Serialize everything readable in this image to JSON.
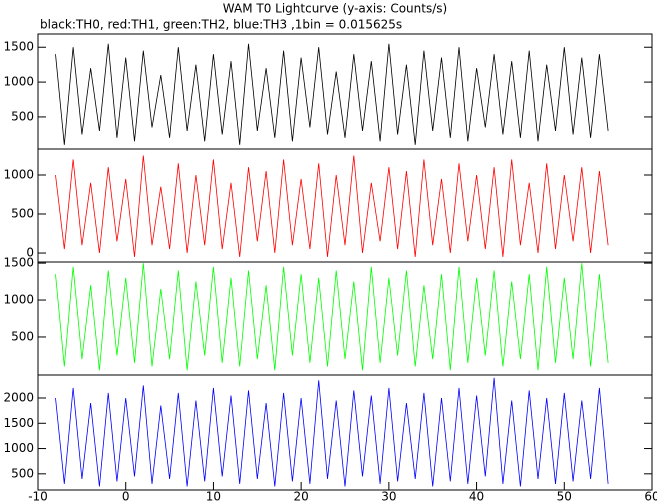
{
  "chart_data": [
    {
      "type": "line",
      "title": "WAM T0 Lightcurve (y-axis: Counts/s)",
      "subtitle": "black:TH0, red:TH1, green:TH2, blue:TH3 ,1bin = 0.015625s",
      "xlim": [
        -10,
        60
      ],
      "ylim": [
        40,
        1690
      ],
      "yticks": [
        500,
        1000,
        1500
      ],
      "x": [
        -8,
        -7,
        -6,
        -5,
        -4,
        -3,
        -2,
        -1,
        0,
        1,
        2,
        3,
        4,
        5,
        6,
        7,
        8,
        9,
        10,
        11,
        12,
        13,
        14,
        15,
        16,
        17,
        18,
        19,
        20,
        21,
        22,
        23,
        24,
        25,
        26,
        27,
        28,
        29,
        30,
        31,
        32,
        33,
        34,
        35,
        36,
        37,
        38,
        39,
        40,
        41,
        42,
        43,
        44,
        45,
        46,
        47,
        48,
        49,
        50,
        51,
        52,
        53,
        54,
        55
      ],
      "series": [
        {
          "color": "#000000",
          "values": [
            1400,
            100,
            1500,
            250,
            1200,
            300,
            1550,
            200,
            1350,
            150,
            1450,
            350,
            1100,
            200,
            1500,
            300,
            1250,
            150,
            1400,
            250,
            1300,
            100,
            1550,
            300,
            1200,
            200,
            1450,
            150,
            1350,
            350,
            1500,
            250,
            1150,
            200,
            1400,
            300,
            1300,
            150,
            1550,
            250,
            1250,
            100,
            1450,
            300,
            1350,
            200,
            1500,
            150,
            1200,
            350,
            1400,
            250,
            1300,
            200,
            1450,
            150,
            1250,
            300,
            1500,
            250,
            1350,
            200,
            1400,
            300
          ]
        }
      ]
    },
    {
      "type": "line",
      "xlim": [
        -10,
        60
      ],
      "ylim": [
        -115,
        1333
      ],
      "yticks": [
        0,
        500,
        1000
      ],
      "x": [
        -8,
        -7,
        -6,
        -5,
        -4,
        -3,
        -2,
        -1,
        0,
        1,
        2,
        3,
        4,
        5,
        6,
        7,
        8,
        9,
        10,
        11,
        12,
        13,
        14,
        15,
        16,
        17,
        18,
        19,
        20,
        21,
        22,
        23,
        24,
        25,
        26,
        27,
        28,
        29,
        30,
        31,
        32,
        33,
        34,
        35,
        36,
        37,
        38,
        39,
        40,
        41,
        42,
        43,
        44,
        45,
        46,
        47,
        48,
        49,
        50,
        51,
        52,
        53,
        54,
        55
      ],
      "series": [
        {
          "color": "#ff0000",
          "values": [
            1000,
            50,
            1200,
            100,
            900,
            0,
            1100,
            150,
            950,
            -50,
            1250,
            100,
            850,
            50,
            1150,
            0,
            1000,
            100,
            1200,
            50,
            900,
            -50,
            1100,
            150,
            1050,
            0,
            1200,
            100,
            950,
            50,
            1150,
            -50,
            1000,
            100,
            1250,
            0,
            900,
            150,
            1100,
            50,
            1050,
            -50,
            1200,
            100,
            950,
            0,
            1150,
            150,
            1000,
            50,
            1100,
            -50,
            1200,
            100,
            900,
            0,
            1150,
            50,
            1000,
            150,
            1100,
            0,
            1050,
            100
          ]
        }
      ]
    },
    {
      "type": "line",
      "xlim": [
        -10,
        60
      ],
      "ylim": [
        -15,
        1515
      ],
      "yticks": [
        500,
        1000,
        1500
      ],
      "x": [
        -8,
        -7,
        -6,
        -5,
        -4,
        -3,
        -2,
        -1,
        0,
        1,
        2,
        3,
        4,
        5,
        6,
        7,
        8,
        9,
        10,
        11,
        12,
        13,
        14,
        15,
        16,
        17,
        18,
        19,
        20,
        21,
        22,
        23,
        24,
        25,
        26,
        27,
        28,
        29,
        30,
        31,
        32,
        33,
        34,
        35,
        36,
        37,
        38,
        39,
        40,
        41,
        42,
        43,
        44,
        45,
        46,
        47,
        48,
        49,
        50,
        51,
        52,
        53,
        54,
        55
      ],
      "series": [
        {
          "color": "#00ff00",
          "values": [
            1350,
            100,
            1450,
            200,
            1200,
            50,
            1400,
            250,
            1300,
            150,
            1500,
            100,
            1150,
            200,
            1400,
            50,
            1250,
            250,
            1450,
            150,
            1300,
            100,
            1400,
            200,
            1200,
            50,
            1450,
            250,
            1350,
            150,
            1300,
            100,
            1400,
            200,
            1250,
            50,
            1450,
            150,
            1300,
            250,
            1400,
            100,
            1200,
            200,
            1350,
            50,
            1450,
            150,
            1300,
            250,
            1400,
            100,
            1250,
            200,
            1350,
            50,
            1450,
            150,
            1300,
            200,
            1500,
            100,
            1350,
            150
          ]
        }
      ]
    },
    {
      "type": "line",
      "xlim": [
        -10,
        60
      ],
      "ylim": [
        180,
        2455
      ],
      "yticks": [
        500,
        1000,
        1500,
        2000
      ],
      "xticks": [
        -10,
        0,
        10,
        20,
        30,
        40,
        50,
        60
      ],
      "x": [
        -8,
        -7,
        -6,
        -5,
        -4,
        -3,
        -2,
        -1,
        0,
        1,
        2,
        3,
        4,
        5,
        6,
        7,
        8,
        9,
        10,
        11,
        12,
        13,
        14,
        15,
        16,
        17,
        18,
        19,
        20,
        21,
        22,
        23,
        24,
        25,
        26,
        27,
        28,
        29,
        30,
        31,
        32,
        33,
        34,
        35,
        36,
        37,
        38,
        39,
        40,
        41,
        42,
        43,
        44,
        45,
        46,
        47,
        48,
        49,
        50,
        51,
        52,
        53,
        54,
        55
      ],
      "series": [
        {
          "color": "#0000ff",
          "values": [
            2000,
            300,
            2200,
            400,
            1900,
            250,
            2100,
            350,
            2000,
            450,
            2250,
            300,
            1850,
            400,
            2100,
            250,
            1950,
            350,
            2200,
            450,
            2050,
            300,
            2150,
            400,
            1900,
            250,
            2100,
            350,
            2000,
            300,
            2350,
            400,
            1950,
            250,
            2150,
            450,
            2050,
            300,
            2200,
            350,
            1900,
            400,
            2100,
            250,
            2000,
            350,
            2200,
            300,
            2050,
            450,
            2400,
            300,
            1950,
            250,
            2150,
            400,
            2000,
            300,
            2100,
            350,
            1950,
            400,
            2200,
            300
          ]
        }
      ]
    }
  ]
}
